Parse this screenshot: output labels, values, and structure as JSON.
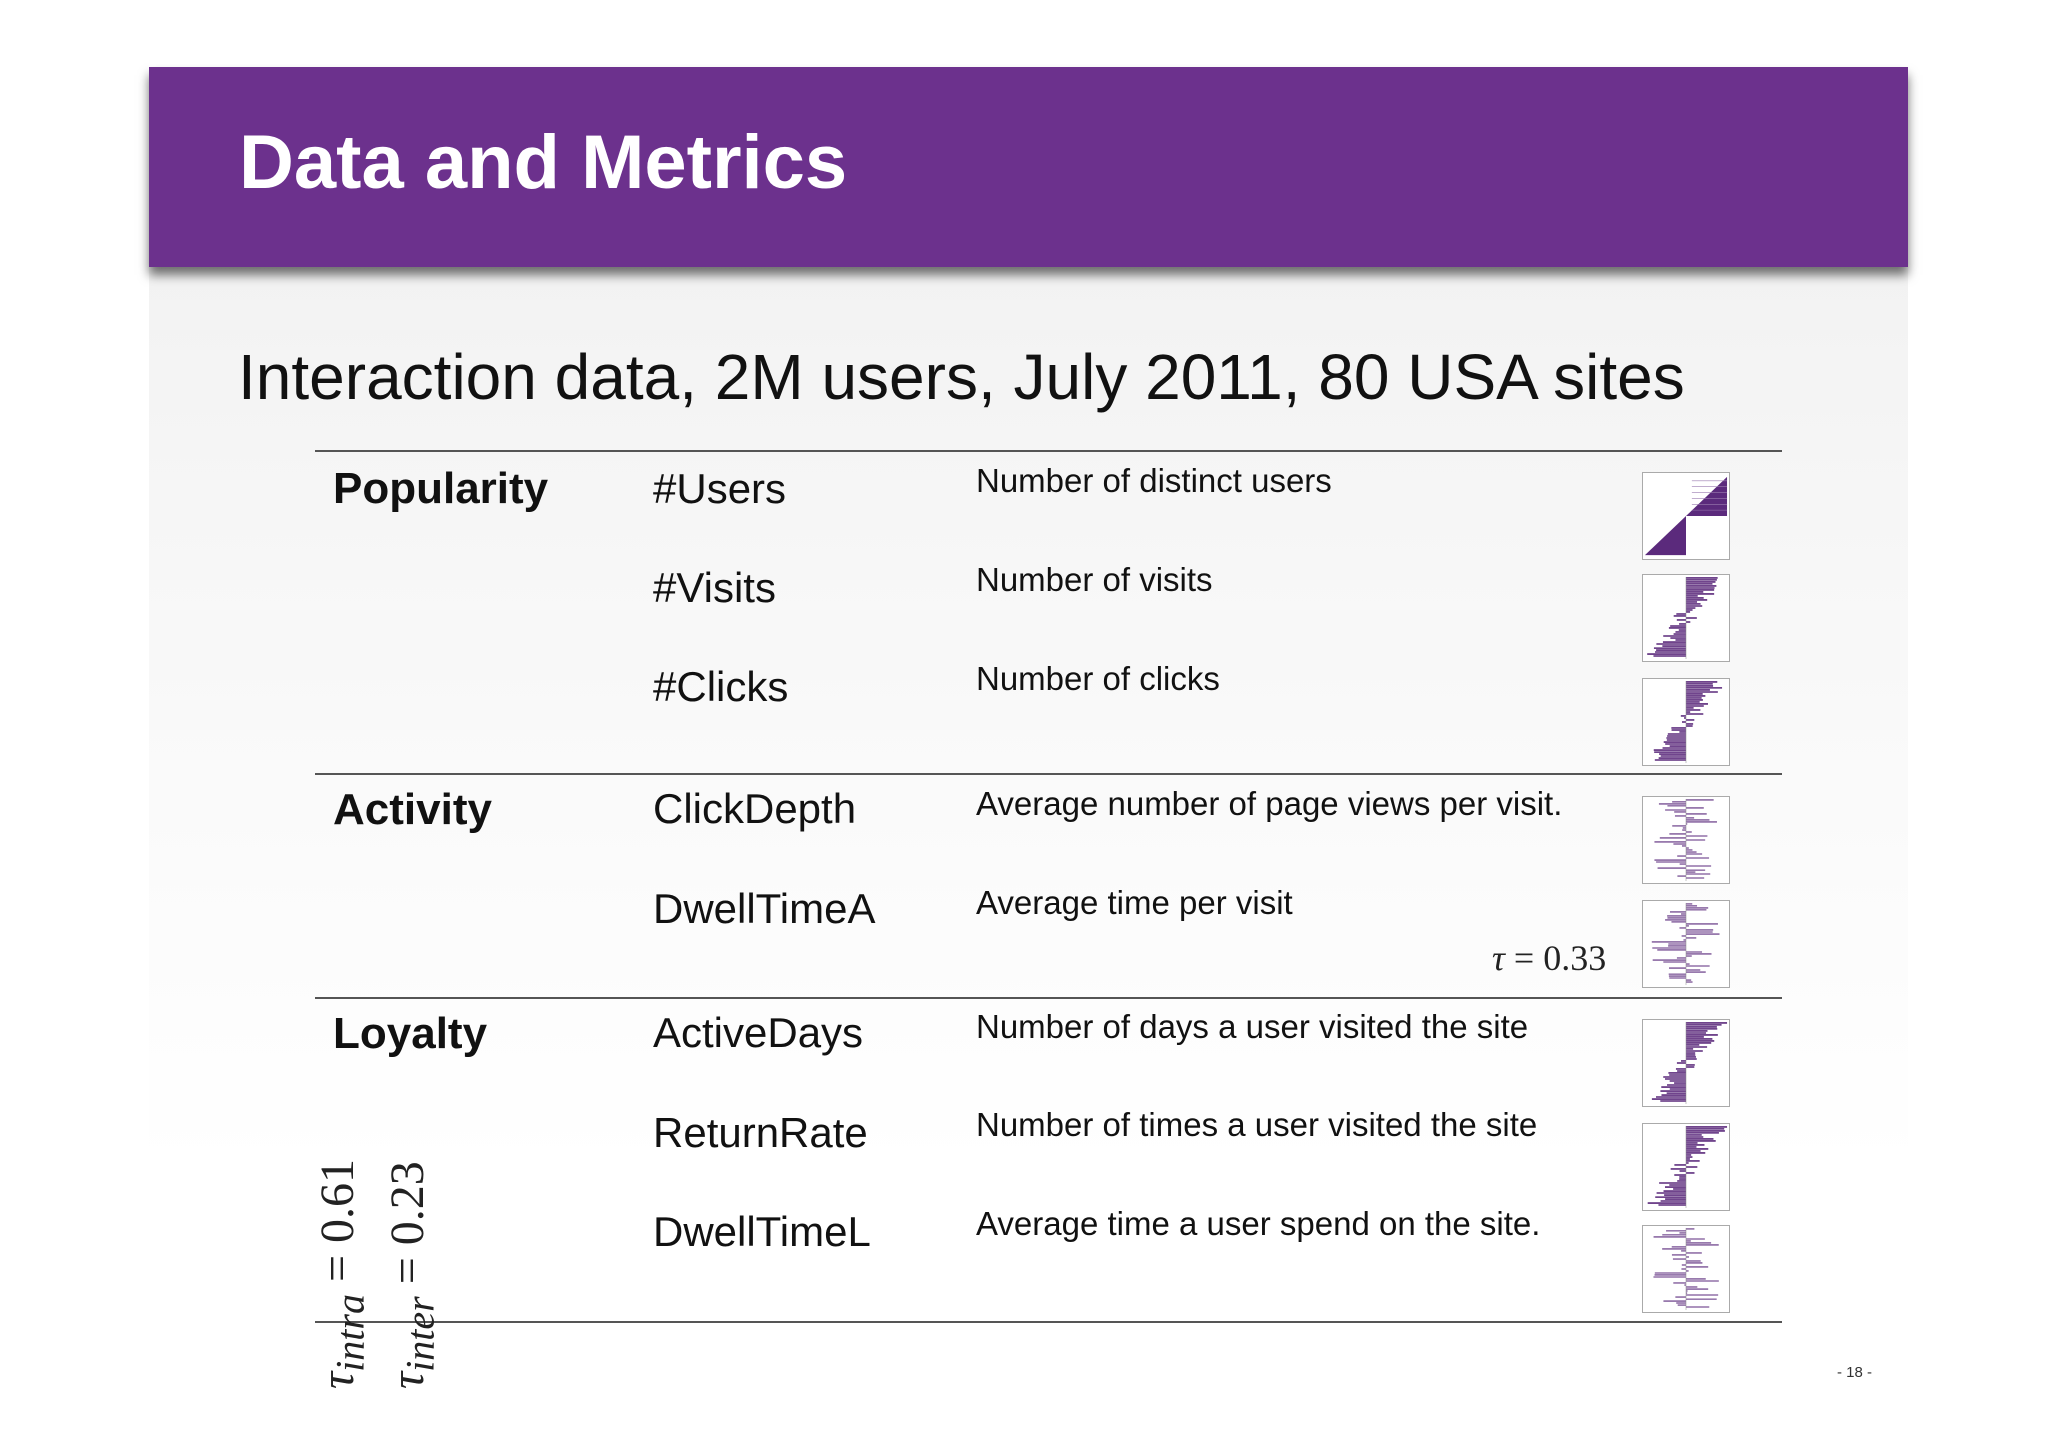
{
  "header": {
    "title": "Data and Metrics"
  },
  "subtitle": "Interaction data, 2M users, July 2011, 80 USA sites",
  "groups": [
    {
      "label": "Popularity",
      "metrics": [
        {
          "name": "#Users",
          "description": "Number of distinct users"
        },
        {
          "name": "#Visits",
          "description": "Number of visits"
        },
        {
          "name": "#Clicks",
          "description": "Number of clicks"
        }
      ]
    },
    {
      "label": "Activity",
      "metrics": [
        {
          "name": "ClickDepth",
          "description": "Average number of page views per visit."
        },
        {
          "name": "DwellTimeA",
          "description": "Average time per visit"
        }
      ]
    },
    {
      "label": "Loyalty",
      "metrics": [
        {
          "name": "ActiveDays",
          "description": "Number of days a user visited the site"
        },
        {
          "name": "ReturnRate",
          "description": "Number of times a user visited the site"
        },
        {
          "name": "DwellTimeL",
          "description": "Average time a user spend on the site."
        }
      ]
    }
  ],
  "annotations": {
    "tau_symbol": "τ",
    "tau_value": "= 0.33",
    "tau_intra_sub": "intra",
    "tau_intra_value": "= 0.61",
    "tau_inter_sub": "inter",
    "tau_inter_value": "= 0.23"
  },
  "page_number": "- 18 -",
  "colors": {
    "accent": "#6c318d",
    "bar": "#5b2a7c"
  }
}
